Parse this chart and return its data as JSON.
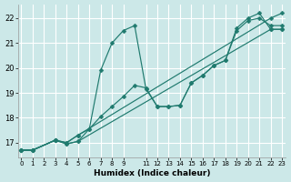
{
  "xlabel": "Humidex (Indice chaleur)",
  "bg_color": "#cce8e8",
  "grid_color": "#ffffff",
  "line_color": "#1f7a6e",
  "xlim": [
    -0.3,
    23.3
  ],
  "ylim": [
    16.4,
    22.55
  ],
  "xtick_vals": [
    0,
    1,
    2,
    3,
    4,
    5,
    6,
    7,
    8,
    9,
    11,
    12,
    13,
    14,
    15,
    16,
    17,
    18,
    19,
    20,
    21,
    22,
    23
  ],
  "xtick_labels": [
    "0",
    "1",
    "2",
    "3",
    "4",
    "5",
    "6",
    "7",
    "8",
    "9",
    "11",
    "12",
    "13",
    "14",
    "15",
    "16",
    "17",
    "18",
    "19",
    "20",
    "21",
    "22",
    "23"
  ],
  "ytick_vals": [
    17,
    18,
    19,
    20,
    21,
    22
  ],
  "series": [
    {
      "x": [
        0,
        1,
        3,
        4,
        5,
        6,
        7,
        8,
        9,
        10,
        11,
        12,
        13,
        14,
        15,
        16,
        17,
        18,
        19,
        20,
        21,
        22,
        23
      ],
      "y": [
        16.7,
        16.7,
        17.1,
        16.95,
        17.05,
        17.55,
        19.9,
        21.0,
        21.5,
        21.7,
        19.15,
        18.45,
        18.45,
        18.5,
        19.4,
        19.7,
        20.1,
        20.3,
        21.6,
        22.0,
        22.2,
        21.55,
        21.55
      ]
    },
    {
      "x": [
        0,
        1,
        3,
        4,
        5,
        6,
        7,
        8,
        9,
        10,
        11,
        12,
        13,
        14,
        15,
        16,
        17,
        18,
        19,
        20,
        21,
        22,
        23
      ],
      "y": [
        16.7,
        16.7,
        17.1,
        17.0,
        17.3,
        17.55,
        18.05,
        18.45,
        18.85,
        19.3,
        19.2,
        18.45,
        18.45,
        18.5,
        19.4,
        19.7,
        20.1,
        20.3,
        21.5,
        21.9,
        22.0,
        21.7,
        21.7
      ]
    },
    {
      "x": [
        0,
        1,
        3,
        4,
        5,
        22,
        23
      ],
      "y": [
        16.7,
        16.7,
        17.1,
        16.95,
        17.05,
        21.55,
        21.55
      ]
    },
    {
      "x": [
        0,
        1,
        3,
        4,
        5,
        22,
        23
      ],
      "y": [
        16.7,
        16.7,
        17.1,
        17.0,
        17.3,
        22.0,
        22.2
      ]
    }
  ]
}
